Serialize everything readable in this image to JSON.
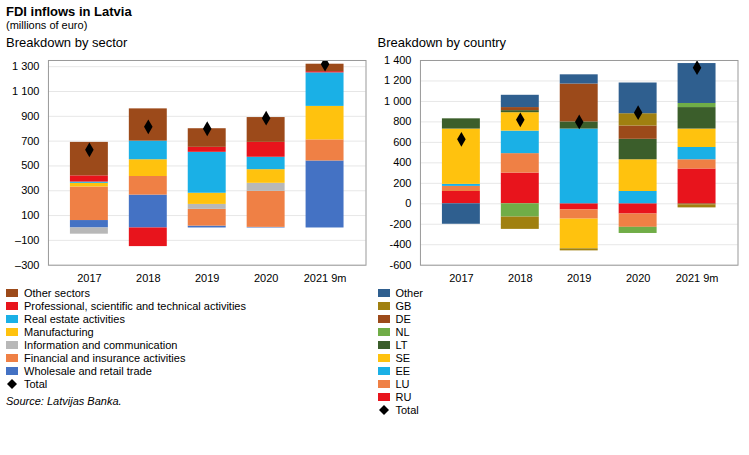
{
  "title": "FDI inflows in Latvia",
  "subtitle": "(millions of euro)",
  "source": "Source: Latvijas Banka.",
  "chart_data": [
    {
      "type": "bar",
      "title": "Breakdown by sector",
      "stacked": true,
      "grid": true,
      "categories": [
        "2017",
        "2018",
        "2019",
        "2020",
        "2021 9m"
      ],
      "ylim": [
        -300,
        1350
      ],
      "yticks": [
        {
          "value": -300,
          "label": "–300"
        },
        {
          "value": -100,
          "label": "–100"
        },
        100,
        300,
        500,
        700,
        900,
        {
          "value": 1100,
          "label": "1 100"
        },
        {
          "value": 1300,
          "label": "1 300"
        }
      ],
      "series": [
        {
          "name": "Wholesale and retail trade",
          "color": "#4472c4",
          "values": [
            60,
            265,
            15,
            5,
            540
          ]
        },
        {
          "name": "Financial and insurance activities",
          "color": "#ef8045",
          "values": [
            270,
            150,
            135,
            290,
            170
          ]
        },
        {
          "name": "Information and communication",
          "color": "#b8b8b8",
          "values": [
            -50,
            0,
            40,
            65,
            0
          ]
        },
        {
          "name": "Manufacturing",
          "color": "#ffc20e",
          "values": [
            30,
            135,
            90,
            110,
            270
          ]
        },
        {
          "name": "Real estate activities",
          "color": "#1ab0e6",
          "values": [
            10,
            150,
            330,
            100,
            270
          ]
        },
        {
          "name": "Professional, scientific and technical activities",
          "color": "#e8141c",
          "values": [
            50,
            -150,
            40,
            120,
            10
          ]
        },
        {
          "name": "Other sectors",
          "color": "#9c4a1a",
          "values": [
            270,
            260,
            150,
            200,
            60
          ]
        },
        {
          "name": "Total",
          "type": "scatter",
          "marker": "diamond",
          "color": "#000000",
          "values": [
            630,
            815,
            800,
            885,
            1320
          ]
        }
      ]
    },
    {
      "type": "bar",
      "title": "Breakdown by country",
      "stacked": true,
      "grid": true,
      "categories": [
        "2017",
        "2018",
        "2019",
        "2020",
        "2021 9m"
      ],
      "ylim": [
        -600,
        1400
      ],
      "yticks": [
        -600,
        -400,
        -200,
        0,
        200,
        400,
        600,
        800,
        {
          "value": 1000,
          "label": "1 000"
        },
        {
          "value": 1200,
          "label": "1 200"
        },
        {
          "value": 1400,
          "label": "1 400"
        }
      ],
      "series": [
        {
          "name": "RU",
          "color": "#e8141c",
          "values": [
            120,
            300,
            -60,
            -100,
            340
          ]
        },
        {
          "name": "LU",
          "color": "#ef8045",
          "values": [
            50,
            190,
            -90,
            -130,
            90
          ]
        },
        {
          "name": "EE",
          "color": "#1ab0e6",
          "values": [
            20,
            220,
            730,
            120,
            120
          ]
        },
        {
          "name": "SE",
          "color": "#ffc20e",
          "values": [
            540,
            180,
            -290,
            310,
            180
          ]
        },
        {
          "name": "LT",
          "color": "#3b5e2b",
          "values": [
            100,
            20,
            70,
            200,
            210
          ]
        },
        {
          "name": "NL",
          "color": "#70ad47",
          "values": [
            0,
            -130,
            0,
            -60,
            40
          ]
        },
        {
          "name": "DE",
          "color": "#9c4a1a",
          "values": [
            0,
            30,
            370,
            130,
            -10
          ]
        },
        {
          "name": "GB",
          "color": "#a08010",
          "values": [
            0,
            -120,
            -20,
            120,
            -30
          ]
        },
        {
          "name": "Other",
          "color": "#2f5f8f",
          "values": [
            -200,
            120,
            90,
            300,
            390
          ]
        },
        {
          "name": "Total",
          "type": "scatter",
          "marker": "diamond",
          "color": "#000000",
          "values": [
            630,
            820,
            800,
            890,
            1330
          ]
        }
      ]
    }
  ]
}
